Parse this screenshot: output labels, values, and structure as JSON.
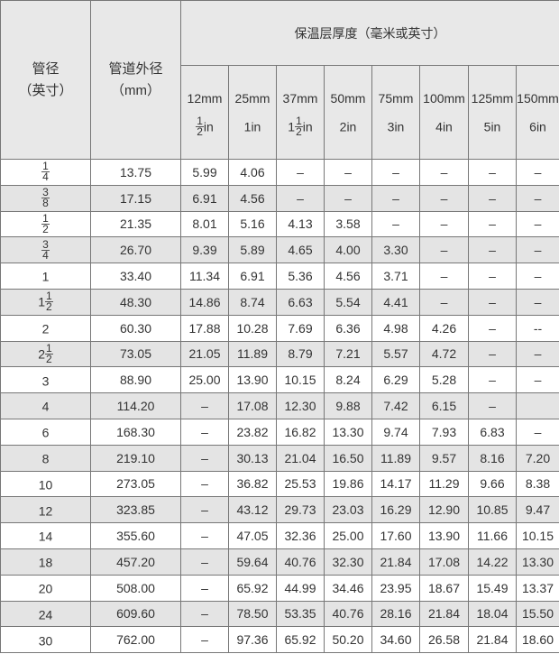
{
  "header": {
    "pipe_size": "管径",
    "pipe_size_unit": "（英寸）",
    "outer_diameter": "管道外径",
    "outer_diameter_unit": "（mm）",
    "thickness_title": "保温层厚度（毫米或英寸）"
  },
  "thickness_columns": [
    {
      "mm": "12mm",
      "whole": "",
      "num": "1",
      "den": "2",
      "unit": "in"
    },
    {
      "mm": "25mm",
      "whole": "1",
      "num": "",
      "den": "",
      "unit": "in"
    },
    {
      "mm": "37mm",
      "whole": "1",
      "num": "1",
      "den": "2",
      "unit": "in"
    },
    {
      "mm": "50mm",
      "whole": "2",
      "num": "",
      "den": "",
      "unit": "in"
    },
    {
      "mm": "75mm",
      "whole": "3",
      "num": "",
      "den": "",
      "unit": "in"
    },
    {
      "mm": "100mm",
      "whole": "4",
      "num": "",
      "den": "",
      "unit": "in"
    },
    {
      "mm": "125mm",
      "whole": "5",
      "num": "",
      "den": "",
      "unit": "in"
    },
    {
      "mm": "150mm",
      "whole": "6",
      "num": "",
      "den": "",
      "unit": "in"
    }
  ],
  "rows": [
    {
      "size": {
        "whole": "",
        "num": "1",
        "den": "4"
      },
      "od": "13.75",
      "values": [
        "5.99",
        "4.06",
        "–",
        "–",
        "–",
        "–",
        "–",
        "–"
      ]
    },
    {
      "size": {
        "whole": "",
        "num": "3",
        "den": "8"
      },
      "od": "17.15",
      "values": [
        "6.91",
        "4.56",
        "–",
        "–",
        "–",
        "–",
        "–",
        "–"
      ]
    },
    {
      "size": {
        "whole": "",
        "num": "1",
        "den": "2"
      },
      "od": "21.35",
      "values": [
        "8.01",
        "5.16",
        "4.13",
        "3.58",
        "–",
        "–",
        "–",
        "–"
      ]
    },
    {
      "size": {
        "whole": "",
        "num": "3",
        "den": "4"
      },
      "od": "26.70",
      "values": [
        "9.39",
        "5.89",
        "4.65",
        "4.00",
        "3.30",
        "–",
        "–",
        "–"
      ]
    },
    {
      "size": {
        "whole": "1",
        "num": "",
        "den": ""
      },
      "od": "33.40",
      "values": [
        "11.34",
        "6.91",
        "5.36",
        "4.56",
        "3.71",
        "–",
        "–",
        "–"
      ]
    },
    {
      "size": {
        "whole": "1",
        "num": "1",
        "den": "2"
      },
      "od": "48.30",
      "values": [
        "14.86",
        "8.74",
        "6.63",
        "5.54",
        "4.41",
        "–",
        "–",
        "–"
      ]
    },
    {
      "size": {
        "whole": "2",
        "num": "",
        "den": ""
      },
      "od": "60.30",
      "values": [
        "17.88",
        "10.28",
        "7.69",
        "6.36",
        "4.98",
        "4.26",
        "–",
        "--"
      ]
    },
    {
      "size": {
        "whole": "2",
        "num": "1",
        "den": "2"
      },
      "od": "73.05",
      "values": [
        "21.05",
        "11.89",
        "8.79",
        "7.21",
        "5.57",
        "4.72",
        "–",
        "–"
      ]
    },
    {
      "size": {
        "whole": "3",
        "num": "",
        "den": ""
      },
      "od": "88.90",
      "values": [
        "25.00",
        "13.90",
        "10.15",
        "8.24",
        "6.29",
        "5.28",
        "–",
        "–"
      ]
    },
    {
      "size": {
        "whole": "4",
        "num": "",
        "den": ""
      },
      "od": "114.20",
      "values": [
        "–",
        "17.08",
        "12.30",
        "9.88",
        "7.42",
        "6.15",
        "–",
        ""
      ]
    },
    {
      "size": {
        "whole": "6",
        "num": "",
        "den": ""
      },
      "od": "168.30",
      "values": [
        "–",
        "23.82",
        "16.82",
        "13.30",
        "9.74",
        "7.93",
        "6.83",
        "–"
      ]
    },
    {
      "size": {
        "whole": "8",
        "num": "",
        "den": ""
      },
      "od": "219.10",
      "values": [
        "–",
        "30.13",
        "21.04",
        "16.50",
        "11.89",
        "9.57",
        "8.16",
        "7.20"
      ]
    },
    {
      "size": {
        "whole": "10",
        "num": "",
        "den": ""
      },
      "od": "273.05",
      "values": [
        "–",
        "36.82",
        "25.53",
        "19.86",
        "14.17",
        "11.29",
        "9.66",
        "8.38"
      ]
    },
    {
      "size": {
        "whole": "12",
        "num": "",
        "den": ""
      },
      "od": "323.85",
      "values": [
        "–",
        "43.12",
        "29.73",
        "23.03",
        "16.29",
        "12.90",
        "10.85",
        "9.47"
      ]
    },
    {
      "size": {
        "whole": "14",
        "num": "",
        "den": ""
      },
      "od": "355.60",
      "values": [
        "–",
        "47.05",
        "32.36",
        "25.00",
        "17.60",
        "13.90",
        "11.66",
        "10.15"
      ]
    },
    {
      "size": {
        "whole": "18",
        "num": "",
        "den": ""
      },
      "od": "457.20",
      "values": [
        "–",
        "59.64",
        "40.76",
        "32.30",
        "21.84",
        "17.08",
        "14.22",
        "13.30"
      ]
    },
    {
      "size": {
        "whole": "20",
        "num": "",
        "den": ""
      },
      "od": "508.00",
      "values": [
        "–",
        "65.92",
        "44.99",
        "34.46",
        "23.95",
        "18.67",
        "15.49",
        "13.37"
      ]
    },
    {
      "size": {
        "whole": "24",
        "num": "",
        "den": ""
      },
      "od": "609.60",
      "values": [
        "–",
        "78.50",
        "53.35",
        "40.76",
        "28.16",
        "21.84",
        "18.04",
        "15.50"
      ]
    },
    {
      "size": {
        "whole": "30",
        "num": "",
        "den": ""
      },
      "od": "762.00",
      "values": [
        "–",
        "97.36",
        "65.92",
        "50.20",
        "34.60",
        "26.58",
        "21.84",
        "18.60"
      ]
    }
  ]
}
